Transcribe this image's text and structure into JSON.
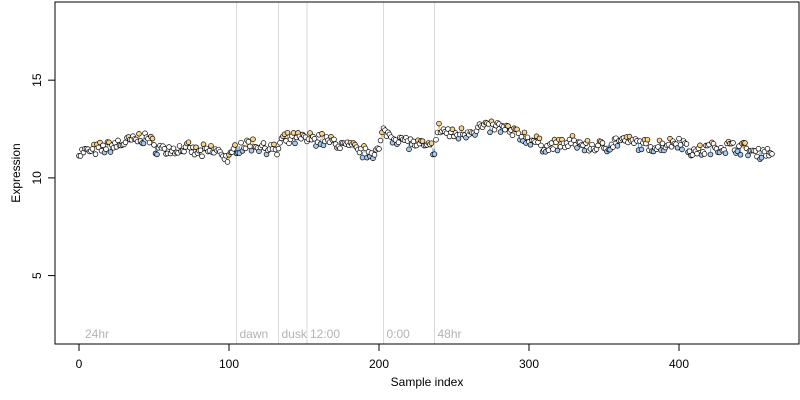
{
  "chart_data": {
    "type": "scatter",
    "title": "",
    "xlabel": "Sample index",
    "ylabel": "Expression",
    "xlim": [
      -16,
      480
    ],
    "ylim": [
      1.5,
      19.0
    ],
    "xticks": [
      0,
      100,
      200,
      300,
      400
    ],
    "yticks": [
      5,
      10,
      15
    ],
    "grid": false,
    "legend": "none",
    "colors": {
      "high": "#f5a623",
      "low": "#6fa8dc",
      "normal": "#000000",
      "annotation_line": "#d9d9d9",
      "annotation_text": "#b3b3b3"
    },
    "annotations": [
      {
        "x": 2,
        "label": "24hr",
        "line": false
      },
      {
        "x": 105,
        "label": "dawn",
        "line": true
      },
      {
        "x": 133,
        "label": "dusk",
        "line": true
      },
      {
        "x": 152,
        "label": "12:00",
        "line": true
      },
      {
        "x": 203,
        "label": "0:00",
        "line": true
      },
      {
        "x": 237,
        "label": "48hr",
        "line": true
      }
    ],
    "trend_anchors": [
      [
        0,
        11.3
      ],
      [
        10,
        11.4
      ],
      [
        20,
        11.6
      ],
      [
        30,
        11.8
      ],
      [
        40,
        12.0
      ],
      [
        45,
        12.1
      ],
      [
        50,
        11.6
      ],
      [
        60,
        11.4
      ],
      [
        70,
        11.5
      ],
      [
        80,
        11.3
      ],
      [
        90,
        11.4
      ],
      [
        95,
        11.3
      ],
      [
        100,
        10.9
      ],
      [
        105,
        11.6
      ],
      [
        115,
        11.7
      ],
      [
        125,
        11.6
      ],
      [
        132,
        11.3
      ],
      [
        135,
        11.9
      ],
      [
        145,
        12.0
      ],
      [
        152,
        12.0
      ],
      [
        160,
        12.0
      ],
      [
        170,
        11.8
      ],
      [
        180,
        11.6
      ],
      [
        190,
        11.3
      ],
      [
        200,
        11.4
      ],
      [
        203,
        12.4
      ],
      [
        210,
        12.1
      ],
      [
        220,
        11.8
      ],
      [
        230,
        11.6
      ],
      [
        237,
        11.5
      ],
      [
        240,
        12.5
      ],
      [
        250,
        12.2
      ],
      [
        260,
        12.4
      ],
      [
        270,
        12.6
      ],
      [
        280,
        12.6
      ],
      [
        290,
        12.3
      ],
      [
        300,
        12.0
      ],
      [
        310,
        11.6
      ],
      [
        320,
        11.7
      ],
      [
        330,
        11.8
      ],
      [
        340,
        11.6
      ],
      [
        350,
        11.6
      ],
      [
        360,
        11.9
      ],
      [
        370,
        11.8
      ],
      [
        380,
        11.6
      ],
      [
        390,
        11.7
      ],
      [
        400,
        11.9
      ],
      [
        410,
        11.3
      ],
      [
        420,
        11.5
      ],
      [
        430,
        11.6
      ],
      [
        440,
        11.6
      ],
      [
        450,
        11.3
      ],
      [
        463,
        11.3
      ]
    ],
    "n_points": 463
  }
}
